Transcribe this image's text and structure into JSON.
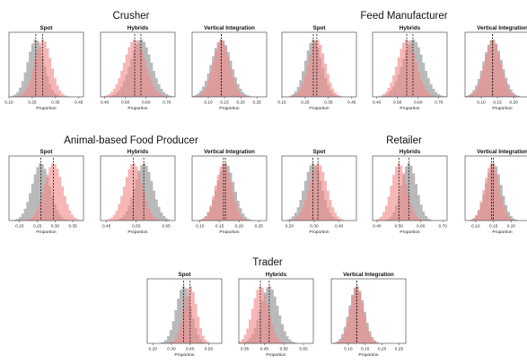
{
  "colors": {
    "grey": "#8f8f8f",
    "pink": "#f28b8b",
    "dashed": "#111111",
    "frame": "#333333"
  },
  "chart_data": [
    {
      "type": "histogram-grid",
      "group": "Crusher",
      "xlabel": "Proportion",
      "panels": [
        {
          "title": "Spot",
          "xlim": [
            0.15,
            0.47
          ],
          "ticks": [
            "0.15",
            "0.25",
            "0.35",
            "0.45"
          ],
          "tick_values": [
            0.15,
            0.25,
            0.35,
            0.45
          ],
          "series": [
            {
              "color": "grey",
              "mean": 0.265,
              "sd": 0.035
            },
            {
              "color": "pink",
              "mean": 0.295,
              "sd": 0.035
            }
          ]
        },
        {
          "title": "Hybrids",
          "xlim": [
            0.38,
            0.74
          ],
          "ticks": [
            "0.40",
            "0.50",
            "0.60",
            "0.70"
          ],
          "tick_values": [
            0.4,
            0.5,
            0.6,
            0.7
          ],
          "series": [
            {
              "color": "grey",
              "mean": 0.575,
              "sd": 0.05
            },
            {
              "color": "pink",
              "mean": 0.545,
              "sd": 0.05
            }
          ]
        },
        {
          "title": "Vertical Integration",
          "xlim": [
            0.05,
            0.28
          ],
          "ticks": [
            "0.10",
            "0.15",
            "0.20",
            "0.25"
          ],
          "tick_values": [
            0.1,
            0.15,
            0.2,
            0.25
          ],
          "series": [
            {
              "color": "grey",
              "mean": 0.14,
              "sd": 0.03
            },
            {
              "color": "pink",
              "mean": 0.14,
              "sd": 0.025
            }
          ]
        }
      ]
    },
    {
      "type": "histogram-grid",
      "group": "Feed Manufacturer",
      "xlabel": "Proportion",
      "panels": [
        {
          "title": "Spot",
          "xlim": [
            0.15,
            0.47
          ],
          "ticks": [
            "0.15",
            "0.25",
            "0.35",
            "0.45"
          ],
          "tick_values": [
            0.15,
            0.25,
            0.35,
            0.45
          ],
          "series": [
            {
              "color": "grey",
              "mean": 0.285,
              "sd": 0.035
            },
            {
              "color": "pink",
              "mean": 0.3,
              "sd": 0.035
            }
          ]
        },
        {
          "title": "Hybrids",
          "xlim": [
            0.38,
            0.74
          ],
          "ticks": [
            "0.40",
            "0.50",
            "0.60",
            "0.70"
          ],
          "tick_values": [
            0.4,
            0.5,
            0.6,
            0.7
          ],
          "series": [
            {
              "color": "grey",
              "mean": 0.575,
              "sd": 0.05
            },
            {
              "color": "pink",
              "mean": 0.545,
              "sd": 0.045
            }
          ]
        },
        {
          "title": "Vertical Integration",
          "xlim": [
            0.05,
            0.28
          ],
          "ticks": [
            "0.10",
            "0.15",
            "0.20"
          ],
          "tick_values": [
            0.1,
            0.15,
            0.2
          ],
          "series": [
            {
              "color": "grey",
              "mean": 0.135,
              "sd": 0.028
            },
            {
              "color": "pink",
              "mean": 0.135,
              "sd": 0.025
            }
          ]
        }
      ]
    },
    {
      "type": "histogram-grid",
      "group": "Animal-based Food Producer",
      "xlabel": "Proportion",
      "panels": [
        {
          "title": "Spot",
          "xlim": [
            0.17,
            0.38
          ],
          "ticks": [
            "0.20",
            "0.25",
            "0.30",
            "0.35"
          ],
          "tick_values": [
            0.2,
            0.25,
            0.3,
            0.35
          ],
          "series": [
            {
              "color": "grey",
              "mean": 0.26,
              "sd": 0.025
            },
            {
              "color": "pink",
              "mean": 0.295,
              "sd": 0.025
            }
          ]
        },
        {
          "title": "Hybrids",
          "xlim": [
            0.43,
            0.68
          ],
          "ticks": [
            "0.45",
            "0.55",
            "0.65"
          ],
          "tick_values": [
            0.45,
            0.55,
            0.65
          ],
          "series": [
            {
              "color": "grey",
              "mean": 0.575,
              "sd": 0.03
            },
            {
              "color": "pink",
              "mean": 0.54,
              "sd": 0.03
            }
          ]
        },
        {
          "title": "Vertical Integration",
          "xlim": [
            0.08,
            0.27
          ],
          "ticks": [
            "0.10",
            "0.15",
            "0.20",
            "0.25"
          ],
          "tick_values": [
            0.1,
            0.15,
            0.2,
            0.25
          ],
          "series": [
            {
              "color": "grey",
              "mean": 0.165,
              "sd": 0.022
            },
            {
              "color": "pink",
              "mean": 0.16,
              "sd": 0.02
            }
          ]
        }
      ]
    },
    {
      "type": "histogram-grid",
      "group": "Retailer",
      "xlabel": "Proportion",
      "panels": [
        {
          "title": "Spot",
          "xlim": [
            0.17,
            0.47
          ],
          "ticks": [
            "0.20",
            "0.30",
            "0.40"
          ],
          "tick_values": [
            0.2,
            0.3,
            0.4
          ],
          "series": [
            {
              "color": "grey",
              "mean": 0.295,
              "sd": 0.035
            },
            {
              "color": "pink",
              "mean": 0.315,
              "sd": 0.035
            }
          ]
        },
        {
          "title": "Hybrids",
          "xlim": [
            0.38,
            0.72
          ],
          "ticks": [
            "0.40",
            "0.50",
            "0.60",
            "0.70"
          ],
          "tick_values": [
            0.4,
            0.5,
            0.6,
            0.7
          ],
          "series": [
            {
              "color": "grey",
              "mean": 0.545,
              "sd": 0.035
            },
            {
              "color": "pink",
              "mean": 0.5,
              "sd": 0.035
            }
          ]
        },
        {
          "title": "Vertical Integration",
          "xlim": [
            0.07,
            0.28
          ],
          "ticks": [
            "0.10",
            "0.15",
            "0.20"
          ],
          "tick_values": [
            0.1,
            0.15,
            0.2
          ],
          "series": [
            {
              "color": "grey",
              "mean": 0.15,
              "sd": 0.022
            },
            {
              "color": "pink",
              "mean": 0.145,
              "sd": 0.02
            }
          ]
        }
      ]
    },
    {
      "type": "histogram-grid",
      "group": "Trader",
      "xlabel": "Proportion",
      "panels": [
        {
          "title": "Spot",
          "xlim": [
            0.17,
            0.57
          ],
          "ticks": [
            "0.20",
            "0.30",
            "0.40",
            "0.50"
          ],
          "tick_values": [
            0.2,
            0.3,
            0.4,
            0.5
          ],
          "series": [
            {
              "color": "grey",
              "mean": 0.365,
              "sd": 0.04
            },
            {
              "color": "pink",
              "mean": 0.4,
              "sd": 0.035
            }
          ]
        },
        {
          "title": "Hybrids",
          "xlim": [
            0.32,
            0.7
          ],
          "ticks": [
            "0.35",
            "0.45",
            "0.55",
            "0.65"
          ],
          "tick_values": [
            0.35,
            0.45,
            0.55,
            0.65
          ],
          "series": [
            {
              "color": "grey",
              "mean": 0.475,
              "sd": 0.045
            },
            {
              "color": "pink",
              "mean": 0.43,
              "sd": 0.04
            }
          ]
        },
        {
          "title": "Vertical Integration",
          "xlim": [
            0.05,
            0.27
          ],
          "ticks": [
            "0.10",
            "0.15",
            "0.20",
            "0.25"
          ],
          "tick_values": [
            0.1,
            0.15,
            0.2,
            0.25
          ],
          "series": [
            {
              "color": "grey",
              "mean": 0.125,
              "sd": 0.022
            },
            {
              "color": "pink",
              "mean": 0.125,
              "sd": 0.02
            }
          ]
        }
      ]
    }
  ]
}
